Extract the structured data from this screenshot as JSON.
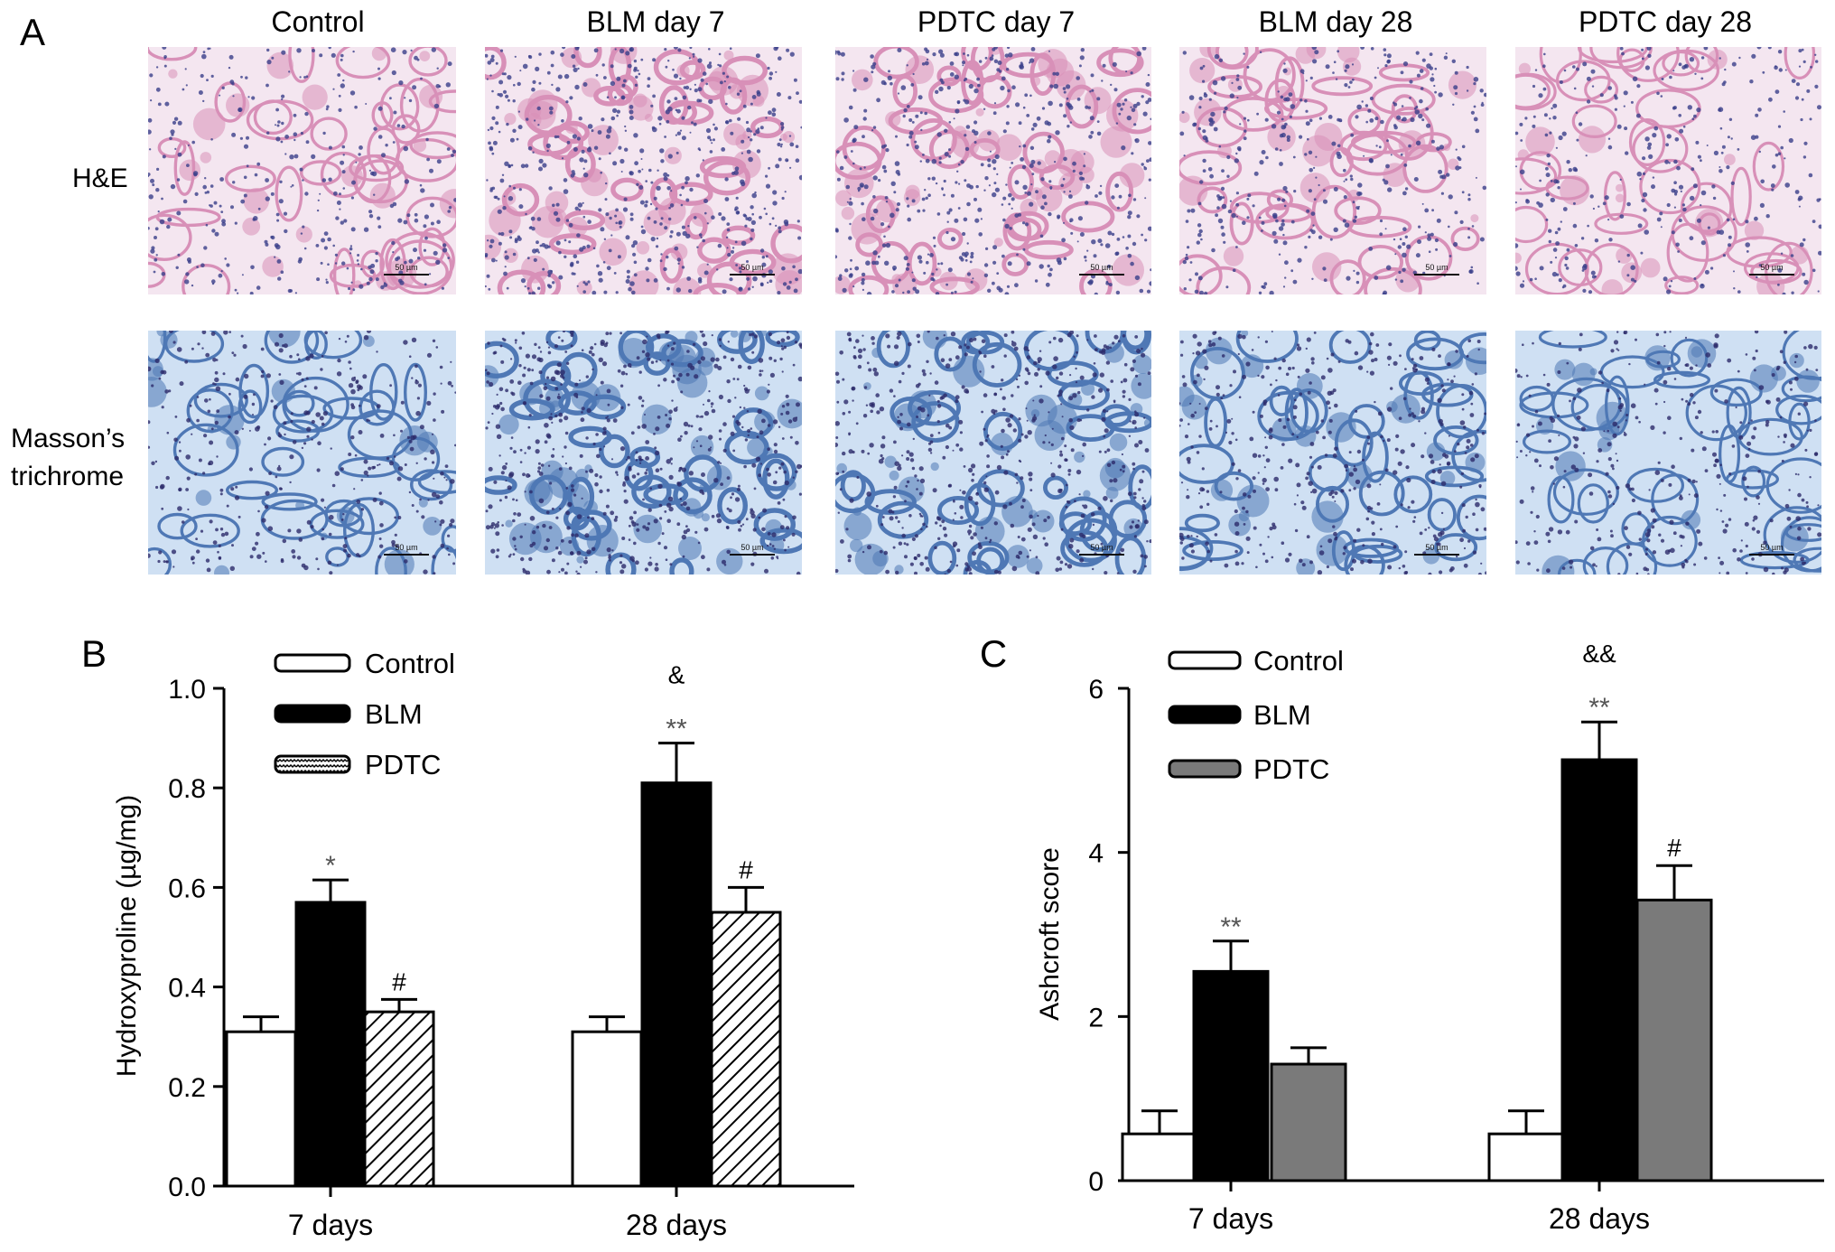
{
  "panelA": {
    "letter": "A",
    "columns": [
      "Control",
      "BLM day 7",
      "PDTC day 7",
      "BLM day 28",
      "PDTC day 28"
    ],
    "rows": [
      {
        "label_lines": [
          "H&E"
        ],
        "stain": "he"
      },
      {
        "label_lines": [
          "Masson’s",
          "trichrome"
        ],
        "stain": "masson"
      }
    ],
    "scale_bar": "50 µm",
    "colors": {
      "he_bg": "#f4e6f0",
      "he_cell": "#3a3f8a",
      "he_tissue": "#d890b8",
      "masson_bg": "#cfe0f3",
      "masson_cell": "#2c2a6a",
      "masson_tissue": "#4f78b5"
    }
  },
  "chart_data": [
    {
      "panel": "B",
      "type": "bar",
      "categories": [
        "7 days",
        "28 days"
      ],
      "ylabel": "Hydroxyproline (µg/mg)",
      "ylim": [
        0,
        1.0
      ],
      "yticks": [
        "0.0",
        "0.2",
        "0.4",
        "0.6",
        "0.8",
        "1.0"
      ],
      "legend_position": "top-left",
      "series": [
        {
          "name": "Control",
          "values": [
            0.31,
            0.31
          ],
          "errors": [
            0.03,
            0.03
          ],
          "fill": "white"
        },
        {
          "name": "BLM",
          "values": [
            0.57,
            0.81
          ],
          "errors": [
            0.045,
            0.08
          ],
          "fill": "black"
        },
        {
          "name": "PDTC",
          "values": [
            0.35,
            0.55
          ],
          "errors": [
            0.025,
            0.05
          ],
          "fill": "hatch"
        }
      ],
      "annotations": [
        {
          "category": 0,
          "series": 1,
          "text": "*"
        },
        {
          "category": 0,
          "series": 2,
          "text": "#"
        },
        {
          "category": 1,
          "series": 1,
          "text": "**"
        },
        {
          "category": 1,
          "series": 1,
          "text": "&",
          "tier": 2
        },
        {
          "category": 1,
          "series": 2,
          "text": "#"
        }
      ]
    },
    {
      "panel": "C",
      "type": "bar",
      "categories": [
        "7 days",
        "28 days"
      ],
      "ylabel": "Ashcroft score",
      "ylim": [
        0,
        6
      ],
      "yticks": [
        "0",
        "2",
        "4",
        "6"
      ],
      "legend_position": "top-left",
      "series": [
        {
          "name": "Control",
          "values": [
            0.57,
            0.57
          ],
          "errors": [
            0.28,
            0.28
          ],
          "fill": "white"
        },
        {
          "name": "BLM",
          "values": [
            2.55,
            5.13
          ],
          "errors": [
            0.37,
            0.46
          ],
          "fill": "black"
        },
        {
          "name": "PDTC",
          "values": [
            1.42,
            3.42
          ],
          "errors": [
            0.2,
            0.42
          ],
          "fill": "gray"
        }
      ],
      "annotations": [
        {
          "category": 0,
          "series": 1,
          "text": "**"
        },
        {
          "category": 1,
          "series": 1,
          "text": "**"
        },
        {
          "category": 1,
          "series": 1,
          "text": "&&",
          "tier": 2
        },
        {
          "category": 1,
          "series": 2,
          "text": "#"
        }
      ]
    }
  ]
}
